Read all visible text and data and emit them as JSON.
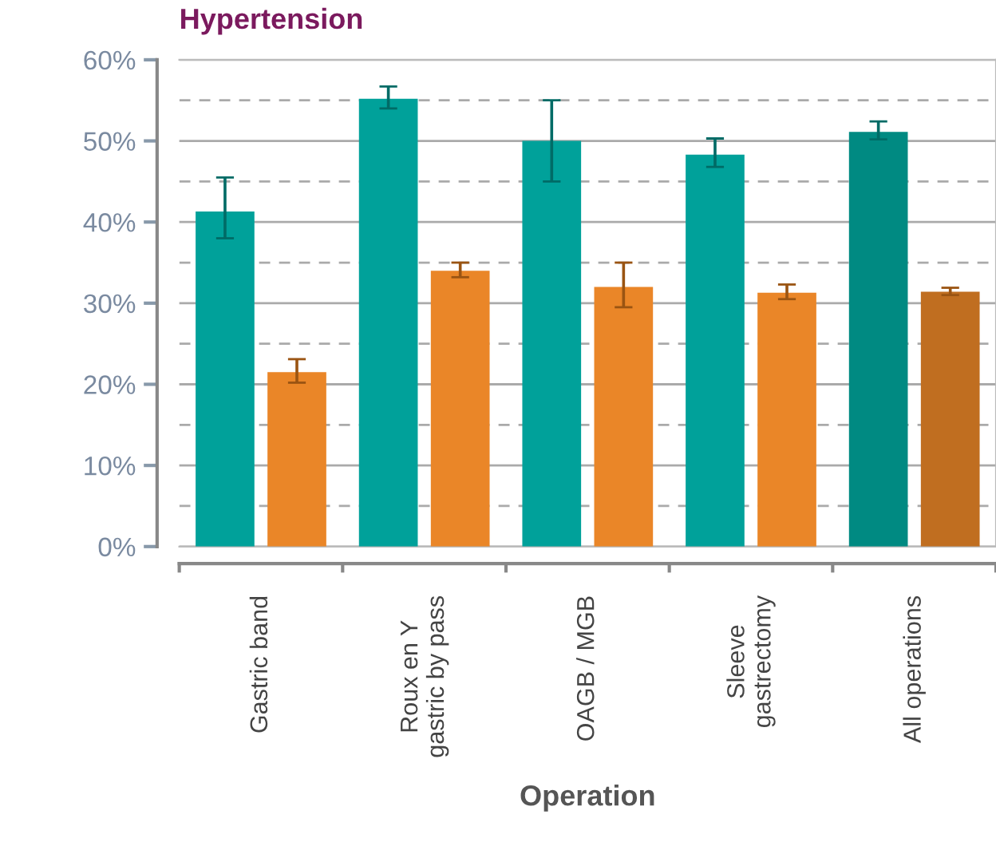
{
  "chart_data": {
    "type": "bar",
    "title": "Hypertension",
    "xlabel": "Operation",
    "categories": [
      "Gastric band",
      "Roux en Y\ngastric by pass",
      "OAGB / MGB",
      "Sleeve\ngastrectomy",
      "All operations"
    ],
    "series": [
      {
        "colors": [
          "#00a19a",
          "#00a19a",
          "#00a19a",
          "#00a19a",
          "#008a82"
        ],
        "values": [
          41.3,
          55.2,
          50,
          48.3,
          51.1
        ],
        "errors": [
          [
            38,
            45.5
          ],
          [
            54,
            56.7
          ],
          [
            45,
            55
          ],
          [
            46.8,
            50.3
          ],
          [
            50.2,
            52.4
          ]
        ]
      },
      {
        "colors": [
          "#ea8628",
          "#ea8628",
          "#ea8628",
          "#ea8628",
          "#c06e20"
        ],
        "values": [
          21.5,
          34,
          32,
          31.3,
          31.4
        ],
        "errors": [
          [
            20.2,
            23.1
          ],
          [
            33.2,
            35
          ],
          [
            29.5,
            35
          ],
          [
            30.5,
            32.3
          ],
          [
            31,
            31.9
          ]
        ]
      }
    ],
    "ylim": [
      0,
      60
    ],
    "yticks": [
      {
        "value": 0,
        "label": "0%"
      },
      {
        "value": 10,
        "label": "10%"
      },
      {
        "value": 20,
        "label": "20%"
      },
      {
        "value": 30,
        "label": "30%"
      },
      {
        "value": 40,
        "label": "40%"
      },
      {
        "value": 50,
        "label": "50%"
      },
      {
        "value": 60,
        "label": "60%"
      }
    ],
    "grid": "y",
    "ref_lines": [
      {
        "axis": "y",
        "value": 5,
        "line_style": "dashed"
      },
      {
        "axis": "y",
        "value": 15,
        "line_style": "dashed"
      },
      {
        "axis": "y",
        "value": 25,
        "line_style": "dashed"
      },
      {
        "axis": "y",
        "value": 35,
        "line_style": "dashed"
      },
      {
        "axis": "y",
        "value": 45,
        "line_style": "dashed"
      },
      {
        "axis": "y",
        "value": 55,
        "line_style": "dashed"
      }
    ]
  }
}
